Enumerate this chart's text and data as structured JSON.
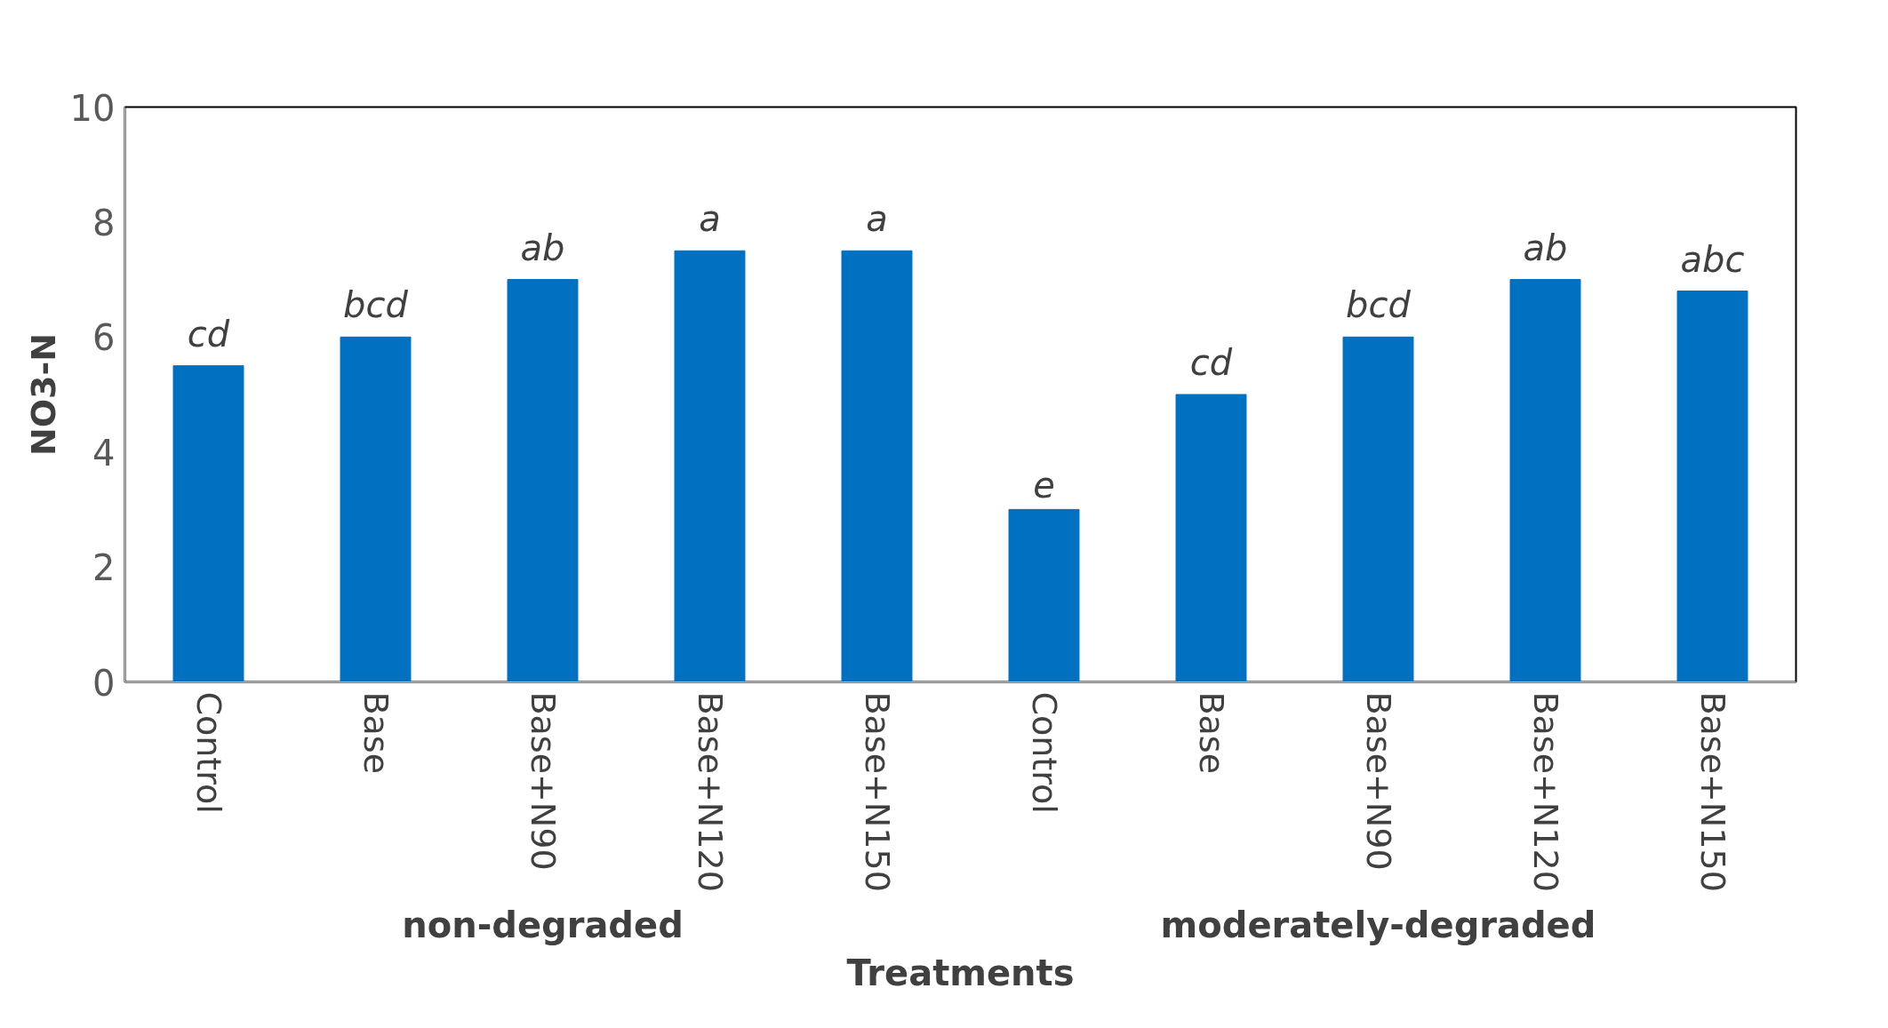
{
  "chart_data": {
    "type": "bar",
    "xlabel": "Treatments",
    "ylabel": "NO3-N",
    "categories": [
      "Control",
      "Base",
      "Base+N90",
      "Base+N120",
      "Base+N150",
      "Control",
      "Base",
      "Base+N90",
      "Base+N120",
      "Base+N150"
    ],
    "values": [
      5.5,
      6.0,
      7.0,
      7.5,
      7.5,
      3.0,
      5.0,
      6.0,
      7.0,
      6.8
    ],
    "value_labels": [
      "cd",
      "bcd",
      "ab",
      "a",
      "a",
      "e",
      "cd",
      "bcd",
      "ab",
      "abc"
    ],
    "color": "#0070c0",
    "ylim": [
      0,
      10
    ],
    "yticks": [
      0,
      2,
      4,
      6,
      8,
      10
    ],
    "grid": false,
    "annotations": [
      "non-degraded",
      "moderately-degraded"
    ]
  }
}
